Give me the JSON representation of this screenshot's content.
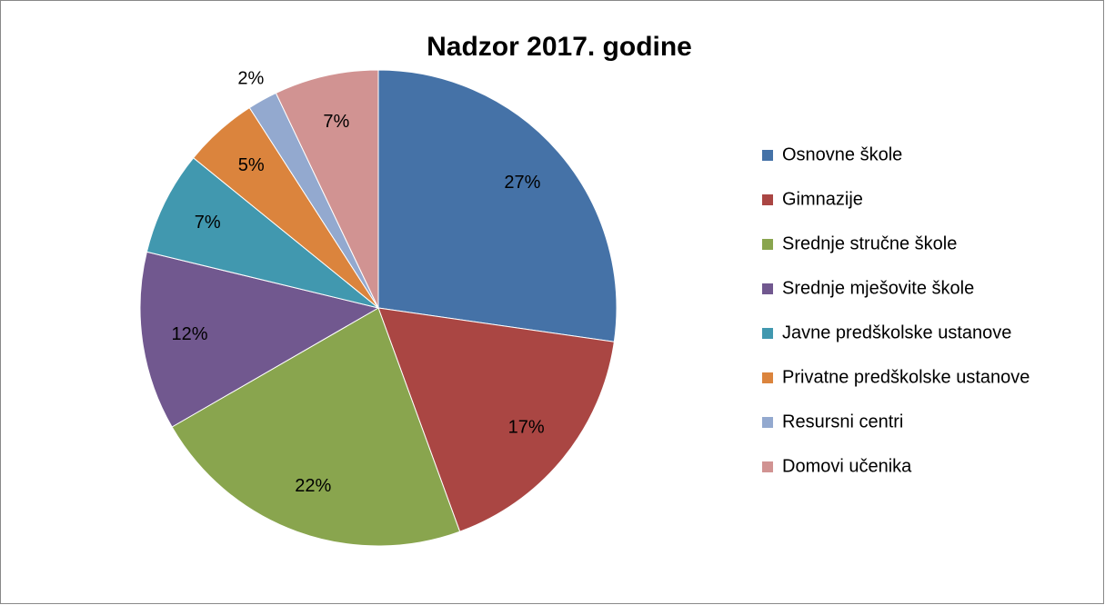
{
  "chart_data": {
    "type": "pie",
    "title": "Nadzor 2017. godine",
    "categories": [
      "Osnovne škole",
      "Gimnazije",
      "Srednje stručne škole",
      "Srednje mješovite škole",
      "Javne predškolske ustanove",
      "Privatne predškolske ustanove",
      "Resursni centri",
      "Domovi učenika"
    ],
    "values": [
      27,
      17,
      22,
      12,
      7,
      5,
      2,
      7
    ],
    "value_labels": [
      "27%",
      "17%",
      "22%",
      "12%",
      "7%",
      "5%",
      "2%",
      "7%"
    ],
    "colors": [
      "#4572a7",
      "#aa4643",
      "#89a54e",
      "#71588f",
      "#4198af",
      "#db843d",
      "#93a9cf",
      "#d19392"
    ],
    "legend": "right"
  }
}
